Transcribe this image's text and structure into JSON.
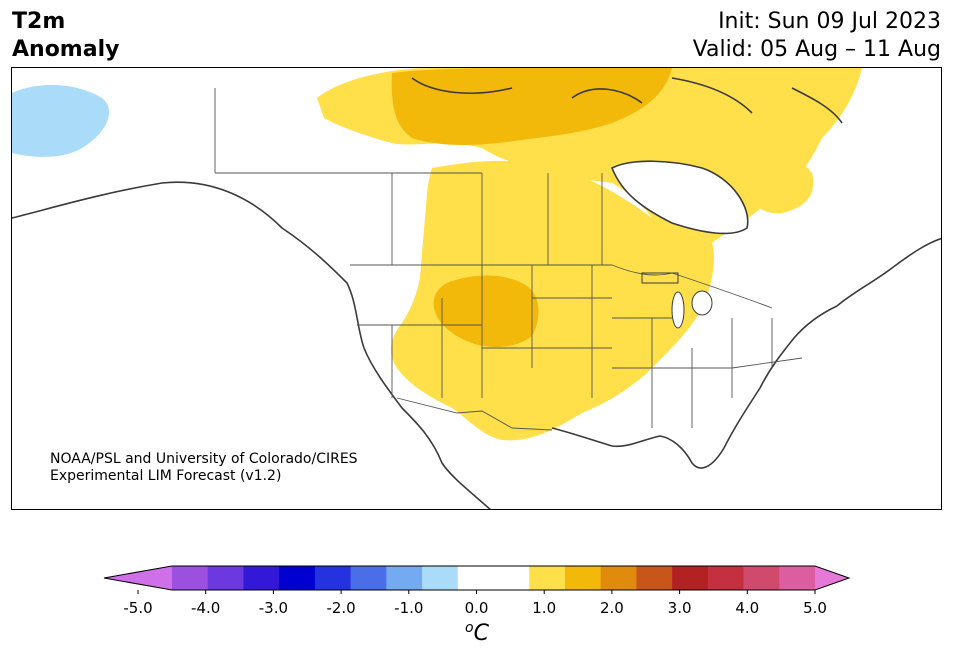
{
  "title": {
    "line1": "T2m",
    "line2": "Anomaly"
  },
  "init": "Init: Sun 09 Jul 2023",
  "valid": "Valid: 05 Aug – 11 Aug",
  "credit": {
    "line1": "NOAA/PSL and University of Colorado/CIRES",
    "line2": "Experimental LIM Forecast (v1.2)"
  },
  "colorbar": {
    "ticks": [
      "-5.0",
      "-4.0",
      "-3.0",
      "-2.0",
      "-1.0",
      "0.0",
      "1.0",
      "2.0",
      "3.0",
      "4.0",
      "5.0"
    ],
    "unit_base": "C",
    "unit_super": "o",
    "colors": [
      "#d070e8",
      "#9c50e0",
      "#6c38e0",
      "#3418d8",
      "#0000d0",
      "#2432e0",
      "#4a6ee8",
      "#74aaf0",
      "#aadcfa",
      "#ffffff",
      "#ffffff",
      "#ffe04a",
      "#f2b80a",
      "#e08a0e",
      "#c8561a",
      "#b22222",
      "#c43040",
      "#d04a6e",
      "#dc5ea0",
      "#e678d8"
    ]
  },
  "anomaly_levels": {
    "light_blue": "#aadcfa",
    "yellow": "#ffe04a",
    "gold": "#f2b80a"
  }
}
